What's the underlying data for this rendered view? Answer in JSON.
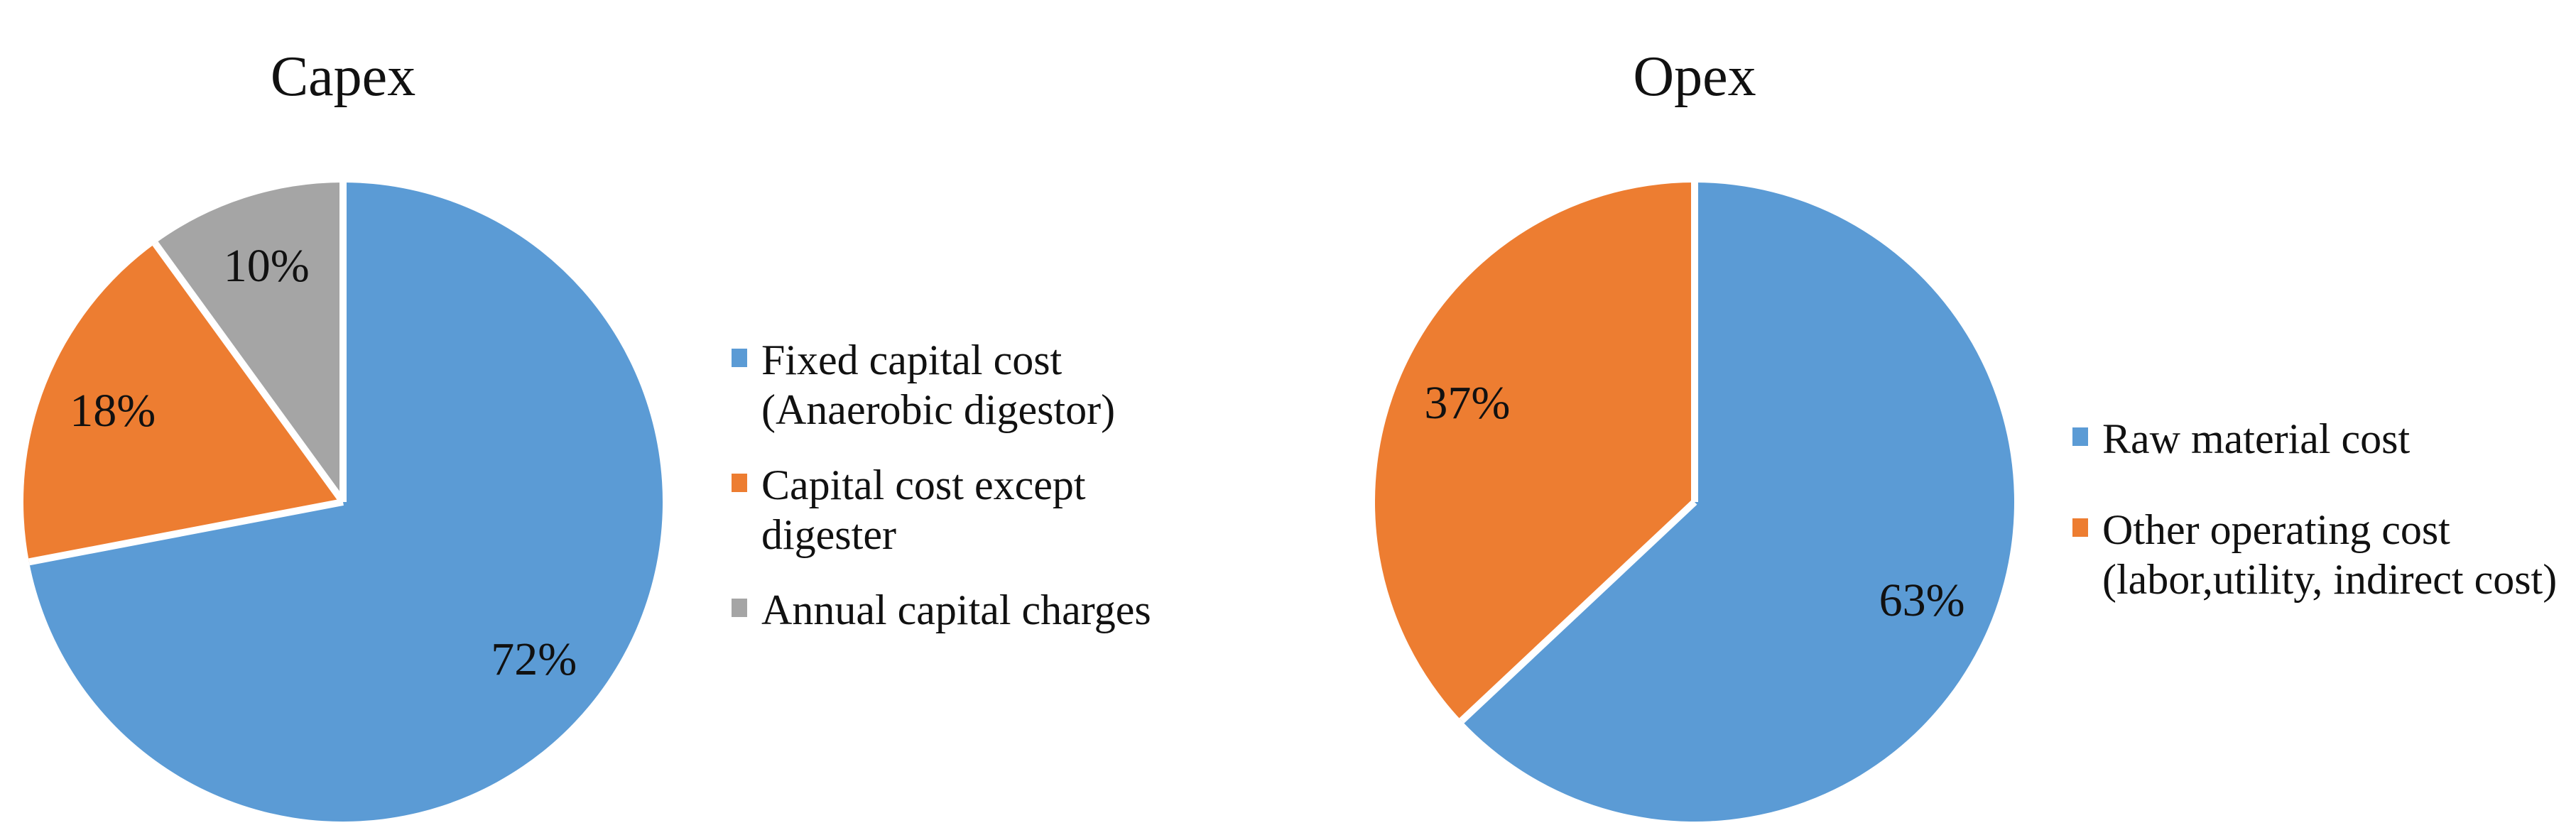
{
  "figure": {
    "background_color": "#FFFFFF",
    "text_color": "#111111",
    "slice_separator_color": "#FFFFFF"
  },
  "chart_data": [
    {
      "type": "pie",
      "title": "Capex",
      "direction": "clockwise",
      "start_angle_deg": 0,
      "data_labels": "inside-percent",
      "legend_position": "right",
      "slices": [
        {
          "label": "Fixed capital cost\n(Anaerobic digestor)",
          "value": 72,
          "display": "72%",
          "color": "#5B9BD5"
        },
        {
          "label": "Capital cost except\ndigester",
          "value": 18,
          "display": "18%",
          "color": "#ED7D31"
        },
        {
          "label": "Annual capital charges",
          "value": 10,
          "display": "10%",
          "color": "#A5A5A5"
        }
      ]
    },
    {
      "type": "pie",
      "title": "Opex",
      "direction": "clockwise",
      "start_angle_deg": 0,
      "data_labels": "inside-percent",
      "legend_position": "right",
      "slices": [
        {
          "label": "Raw material cost",
          "value": 63,
          "display": "63%",
          "color": "#5B9BD5"
        },
        {
          "label": "Other operating cost\n(labor,utility, indirect cost)",
          "value": 37,
          "display": "37%",
          "color": "#ED7D31"
        }
      ]
    }
  ]
}
